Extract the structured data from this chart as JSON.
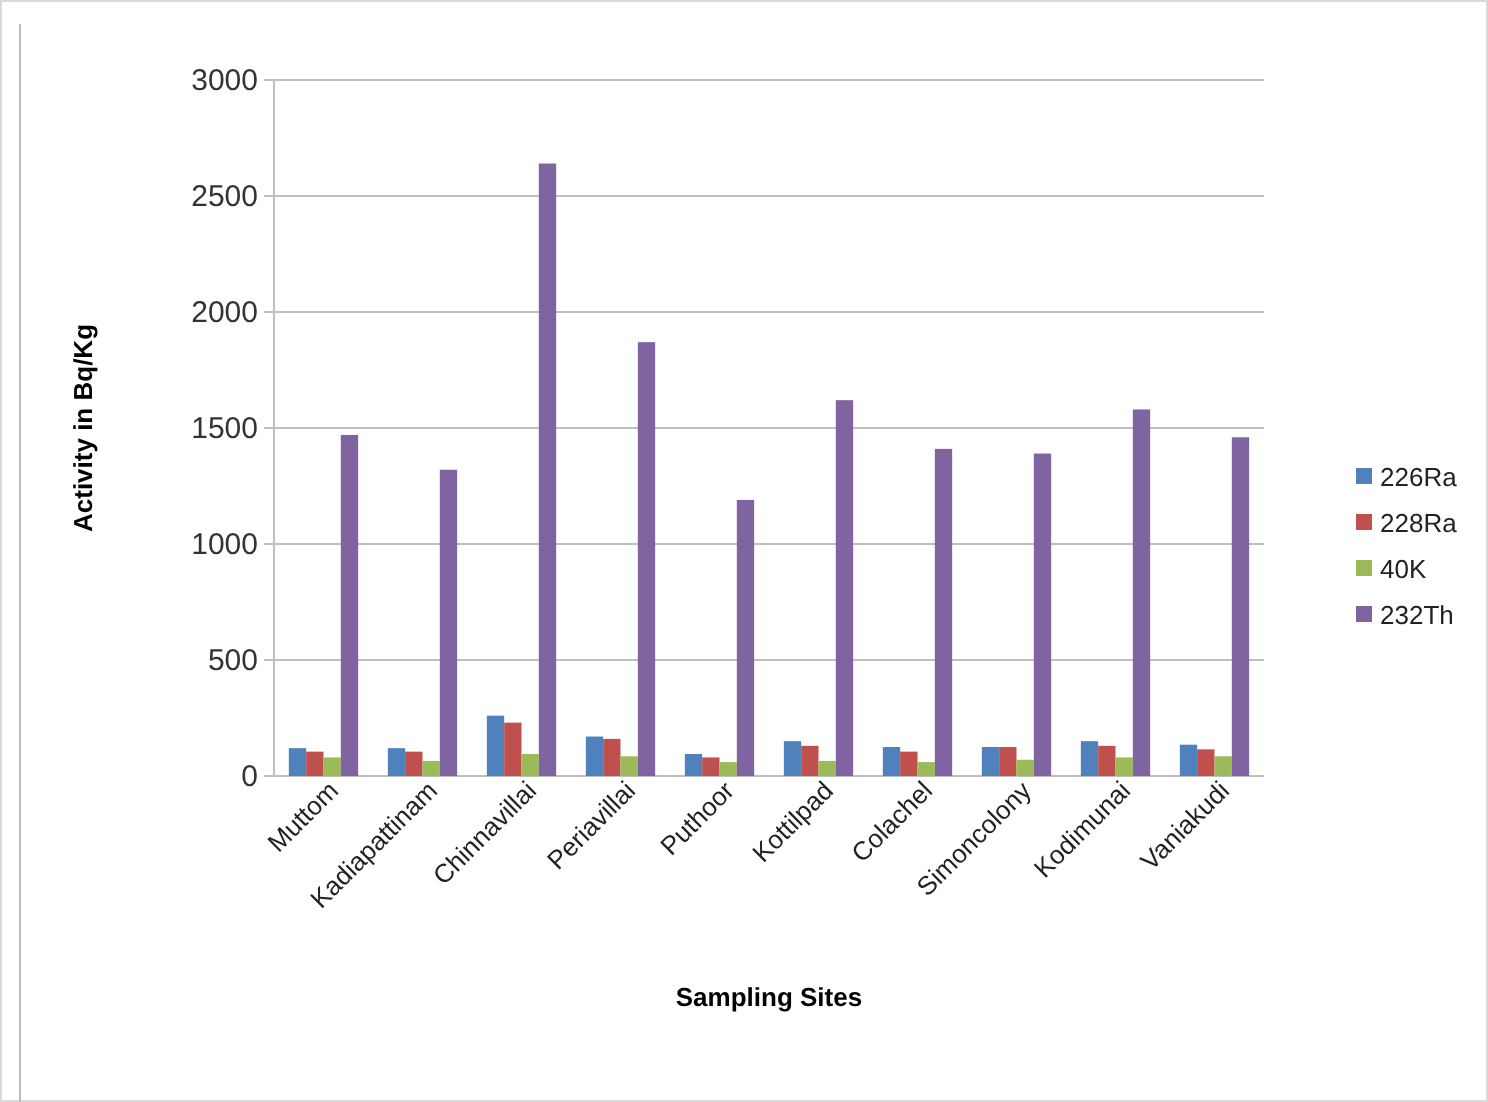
{
  "chart_data": {
    "type": "bar",
    "xlabel": "Sampling Sites",
    "ylabel": "Activity in Bq/Kg",
    "categories": [
      "Muttom",
      "Kadiapattinam",
      "Chinnavillai",
      "Periavillai",
      "Puthoor",
      "Kottilpad",
      "Colachel",
      "Simoncolony",
      "Kodimunai",
      "Vaniakudi"
    ],
    "series": [
      {
        "name": "226Ra",
        "color": "#4f81bd",
        "values": [
          120,
          120,
          260,
          170,
          95,
          150,
          125,
          125,
          150,
          135
        ]
      },
      {
        "name": "228Ra",
        "color": "#c0504d",
        "values": [
          105,
          105,
          230,
          160,
          80,
          130,
          105,
          125,
          130,
          115
        ]
      },
      {
        "name": "40K",
        "color": "#9bbb59",
        "values": [
          80,
          65,
          95,
          85,
          60,
          65,
          60,
          70,
          80,
          85
        ]
      },
      {
        "name": "232Th",
        "color": "#8064a2",
        "values": [
          1470,
          1320,
          2640,
          1870,
          1190,
          1620,
          1410,
          1390,
          1580,
          1460
        ]
      }
    ],
    "ylim": [
      0,
      3000
    ],
    "yticks": [
      0,
      500,
      1000,
      1500,
      2000,
      2500,
      3000
    ],
    "grid": "y",
    "legend": "right"
  }
}
